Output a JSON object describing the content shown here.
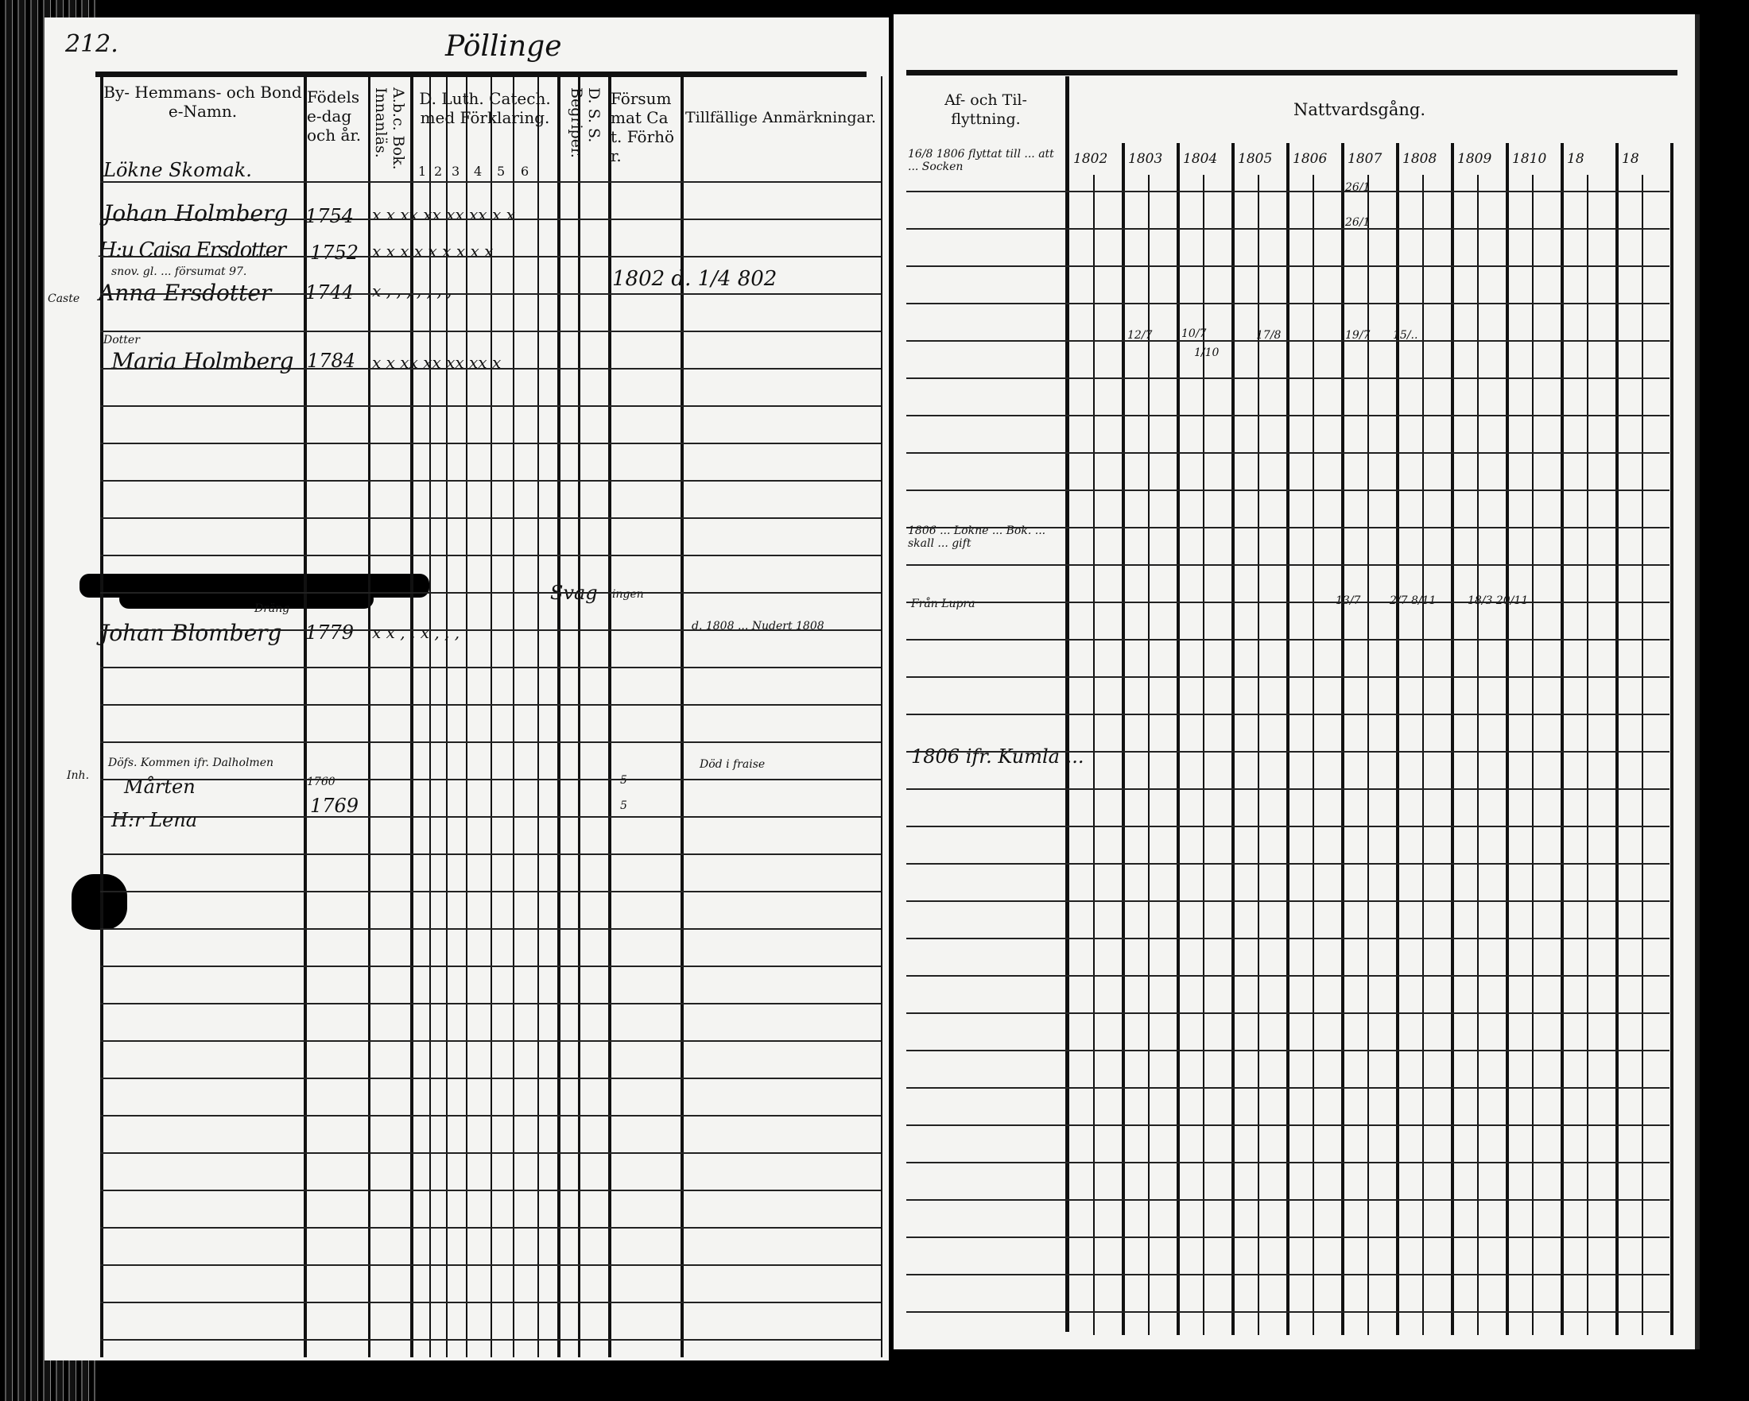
{
  "left_page": {
    "page_number": "212.",
    "village": "Pöllinge",
    "headers": {
      "name": "By- Hemmans- och Bonde-Namn.",
      "birth": "Födelse-dag och år.",
      "abc": "A.b.c. Bok. Innanläs.",
      "catechism": "D. Luth. Catech. med Förklaring.",
      "catechism_parts": [
        "1",
        "2",
        "3",
        "4",
        "5",
        "6"
      ],
      "dss": "D. S. S. Begriper.",
      "neglected": "Försummat Cat. Förhör.",
      "remarks": "Tillfällige Anmärkningar."
    },
    "household_title": "Lökne Skomak.",
    "entries": [
      {
        "name": "Johan Holmberg",
        "year": "1754",
        "marks": "x x xx xx xx xx x x"
      },
      {
        "name": "H:u Caisa Ersdotter",
        "year": "1752",
        "marks": "x x x x x x x x x",
        "note": "snov. gl. ... försumat 97."
      },
      {
        "name": "Anna Ersdotter",
        "prefix": "Caste",
        "year": "1744",
        "marks": "x , , , , , , ,",
        "remark": "1802 d. 1/4 802"
      },
      {
        "name": "Maria Holmberg",
        "prefix": "Dotter",
        "year": "1784",
        "marks": "x x xx xx xx xx x"
      },
      {
        "name": "Johan Blomberg",
        "year": "1779",
        "marks": "x x , , x , , ,",
        "above": "Dräng",
        "remark": "d. 1808 ... Nudert 1808",
        "dss": "Svag",
        "neglected": "ingen"
      },
      {
        "name": "Mårten",
        "prefix": "Inh.",
        "line1": "Döfs. Kommen ifr. Dalholmen",
        "year": "1760",
        "dss": "5",
        "remark": "Död i fraise"
      },
      {
        "name": "H:r Lena",
        "year": "1769",
        "dss": "5"
      }
    ]
  },
  "right_page": {
    "headers": {
      "moving": "Af- och Til- flyttning.",
      "communion": "Nattvardsgång."
    },
    "years": [
      "1802",
      "1803",
      "1804",
      "1805",
      "1806",
      "1807",
      "1808",
      "1809",
      "1810",
      "18",
      "18"
    ],
    "notes": [
      "16/8 1806 flyttat till ... att ... Socken",
      "1806 ... Lokne ... Bok. ... skall ... gift",
      "Från Lupra",
      "1806 ifr. Kumla ... "
    ],
    "communion_marks": [
      "26/1",
      "26/1",
      "12/7",
      "10/7",
      "1/10",
      "17/8",
      "19/7",
      "15/..",
      "13/7",
      "2/7 8/11",
      "18/3 20/11"
    ]
  }
}
